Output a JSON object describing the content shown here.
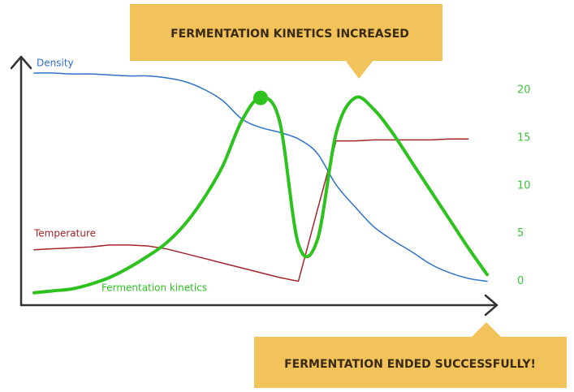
{
  "chart_data": {
    "type": "line",
    "annotations": [
      "FERMENTATION KINETICS INCREASED",
      "FERMENTATION ENDED SUCCESSFULLY!"
    ],
    "y2lim": [
      -2.5,
      23.5
    ],
    "y2ticks": [
      0,
      5,
      10,
      15,
      20
    ],
    "tick_color": "#3ec43e",
    "series": [
      {
        "name": "Density",
        "color": "#2f72c9",
        "axis": "y2",
        "smooth": true,
        "values": [
          21.8,
          21.8,
          21.7,
          21.7,
          21.6,
          21.5,
          21.5,
          21.3,
          20.9,
          20.1,
          18.9,
          17.0,
          16.1,
          15.6,
          14.9,
          13.4,
          10.1,
          7.8,
          5.7,
          4.3,
          3.1,
          1.8,
          0.9,
          0.3,
          0
        ]
      },
      {
        "name": "Temperature",
        "color": "#a3242a",
        "axis": "y2",
        "smooth": false,
        "values": [
          3.3,
          3.4,
          3.5,
          3.6,
          3.8,
          3.8,
          3.7,
          3.4,
          2.9,
          2.4,
          1.9,
          1.4,
          0.9,
          0.4,
          0,
          7.4,
          14.7,
          14.7,
          14.8,
          14.8,
          14.8,
          14.8,
          14.9,
          14.9,
          null
        ]
      },
      {
        "name": "Fermentation kinetics",
        "color": "#2ec21f",
        "axis": "y2",
        "smooth": true,
        "values": [
          -1.2,
          -1.0,
          -0.8,
          -0.3,
          0.4,
          1.4,
          2.6,
          4.0,
          6.0,
          8.7,
          12.1,
          16.8,
          19.2,
          16.8,
          3.9,
          4.3,
          15.5,
          19.2,
          18.0,
          15.5,
          12.5,
          9.5,
          6.5,
          3.5,
          0.7
        ]
      }
    ]
  }
}
